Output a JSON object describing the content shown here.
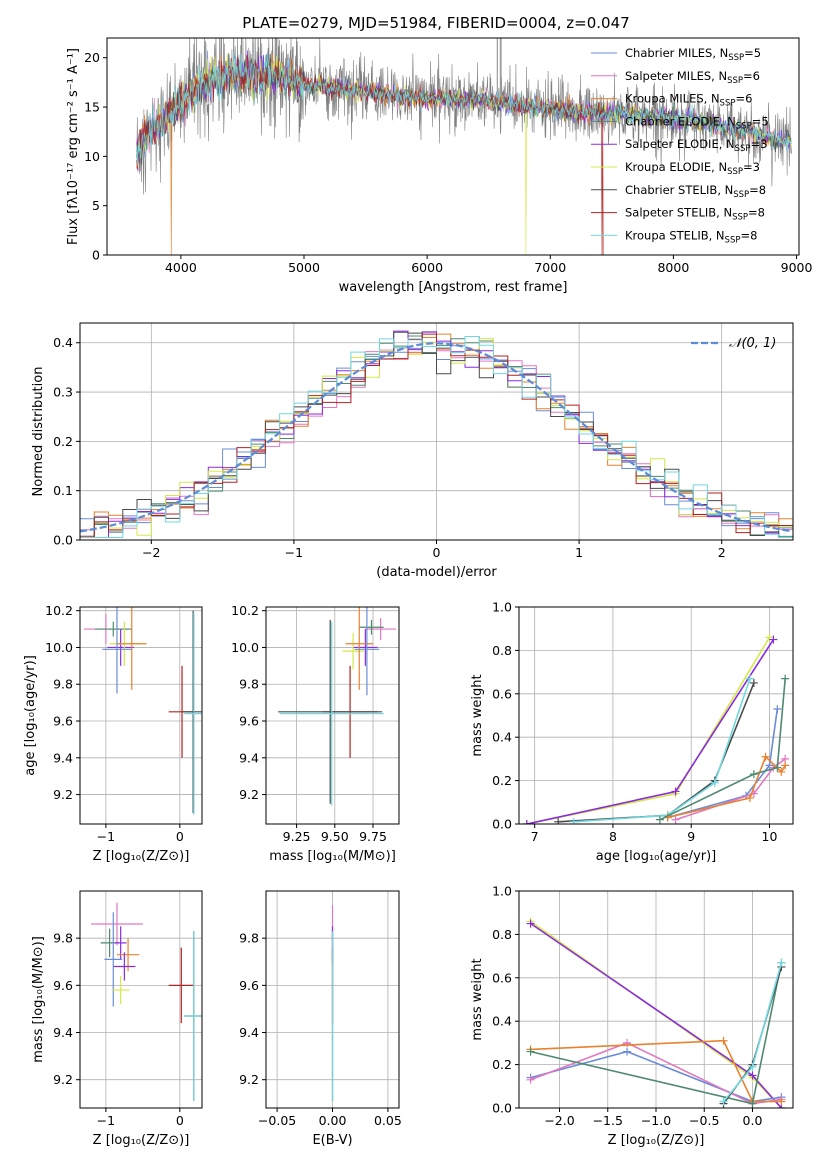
{
  "figure_title": "PLATE=0279, MJD=51984, FIBERID=0004, z=0.047",
  "colors": {
    "chabrier_miles": "#6b8bd9",
    "salpeter_miles": "#e377c2",
    "kroupa_miles": "#e8822e",
    "chabrier_elodie": "#4f8a6f",
    "salpeter_elodie": "#8a2be2",
    "kroupa_elodie": "#d4e84a",
    "chabrier_stelib": "#4a4a4a",
    "salpeter_stelib": "#b22222",
    "kroupa_stelib": "#72d8e0",
    "gaussian": "#5b8bd9"
  },
  "chart_data": [
    {
      "type": "line",
      "id": "spectrum",
      "xlabel": "wavelength [Angstrom, rest frame]",
      "ylabel": "Flux [fλ10⁻¹⁷ erg cm⁻² s⁻¹ A⁻¹]",
      "xlim": [
        3400,
        9020
      ],
      "ylim": [
        0,
        22
      ],
      "xticks": [
        4000,
        5000,
        6000,
        7000,
        8000,
        9000
      ],
      "yticks": [
        0,
        5,
        10,
        15,
        20
      ],
      "legend_position": "top-right",
      "legend": [
        {
          "main": "Chabrier MILES, N",
          "sub": "SSP",
          "tail": "=5",
          "color_key": "chabrier_miles"
        },
        {
          "main": "Salpeter MILES, N",
          "sub": "SSP",
          "tail": "=6",
          "color_key": "salpeter_miles"
        },
        {
          "main": "Kroupa MILES, N",
          "sub": "SSP",
          "tail": "=6",
          "color_key": "kroupa_miles"
        },
        {
          "main": "Chabrier ELODIE, N",
          "sub": "SSP",
          "tail": "=5",
          "color_key": "chabrier_elodie"
        },
        {
          "main": "Salpeter ELODIE, N",
          "sub": "SSP",
          "tail": "=3",
          "color_key": "salpeter_elodie"
        },
        {
          "main": "Kroupa ELODIE, N",
          "sub": "SSP",
          "tail": "=3",
          "color_key": "kroupa_elodie"
        },
        {
          "main": "Chabrier STELIB, N",
          "sub": "SSP",
          "tail": "=8",
          "color_key": "chabrier_stelib"
        },
        {
          "main": "Salpeter STELIB, N",
          "sub": "SSP",
          "tail": "=8",
          "color_key": "salpeter_stelib"
        },
        {
          "main": "Kroupa STELIB, N",
          "sub": "SSP",
          "tail": "=8",
          "color_key": "kroupa_stelib"
        }
      ],
      "continuum": [
        [
          3650,
          10.5
        ],
        [
          3700,
          12.0
        ],
        [
          3800,
          13.0
        ],
        [
          3900,
          14.0
        ],
        [
          4000,
          15.5
        ],
        [
          4200,
          17.5
        ],
        [
          4400,
          18.3
        ],
        [
          4600,
          18.2
        ],
        [
          4800,
          18.2
        ],
        [
          5000,
          17.3
        ],
        [
          5200,
          17.0
        ],
        [
          5500,
          16.5
        ],
        [
          5800,
          16.0
        ],
        [
          6100,
          15.8
        ],
        [
          6400,
          15.8
        ],
        [
          6700,
          15.2
        ],
        [
          7000,
          14.8
        ],
        [
          7300,
          14.4
        ],
        [
          7600,
          14.3
        ],
        [
          7900,
          14.0
        ],
        [
          8200,
          13.5
        ],
        [
          8500,
          12.8
        ],
        [
          8800,
          11.8
        ],
        [
          9000,
          11.5
        ]
      ],
      "data_noise_amplitude": 2.5,
      "spikes": [
        [
          6570,
          22
        ],
        [
          6595,
          22
        ],
        [
          6600,
          22
        ]
      ],
      "model_dropouts": [
        {
          "color_key": "kroupa_miles",
          "x": 3920
        },
        {
          "color_key": "kroupa_elodie",
          "x": 6800
        },
        {
          "color_key": "salpeter_stelib",
          "x": 7420
        }
      ]
    },
    {
      "type": "histogram",
      "id": "residuals",
      "xlabel": "(data-model)/error",
      "ylabel": "Normed distribution",
      "xlim": [
        -2.5,
        2.5
      ],
      "ylim": [
        0,
        0.44
      ],
      "xticks": [
        -2,
        -1,
        0,
        1,
        2
      ],
      "yticks": [
        0.0,
        0.1,
        0.2,
        0.3,
        0.4
      ],
      "grid": true,
      "bin_width": 0.1,
      "gaussian_label": "𝒩(0, 1)",
      "legend_position": "top-right"
    },
    {
      "type": "scatter",
      "id": "age_vs_Z",
      "xlabel": "Z [log₁₀(Z/Z⊙)]",
      "ylabel": "age  [log₁₀(age/yr)]",
      "xlim": [
        -1.35,
        0.3
      ],
      "ylim": [
        9.04,
        10.22
      ],
      "xticks": [
        -1,
        0
      ],
      "yticks": [
        9.2,
        9.4,
        9.6,
        9.8,
        10.0,
        10.2
      ],
      "grid": true,
      "points": [
        {
          "x": -1.0,
          "y": 10.1,
          "xerr": 0.3,
          "yerr": 0.08,
          "color_key": "salpeter_miles"
        },
        {
          "x": -0.9,
          "y": 10.1,
          "xerr": 0.25,
          "yerr": 0.04,
          "color_key": "chabrier_elodie"
        },
        {
          "x": -0.8,
          "y": 10.0,
          "xerr": 0.18,
          "yerr": 0.1,
          "color_key": "salpeter_elodie"
        },
        {
          "x": -0.75,
          "y": 10.02,
          "xerr": 0.2,
          "yerr": 0.12,
          "color_key": "kroupa_elodie"
        },
        {
          "x": -0.65,
          "y": 10.02,
          "xerr": 0.2,
          "yerr": 0.25,
          "color_key": "kroupa_miles"
        },
        {
          "x": -0.85,
          "y": 9.99,
          "xerr": 0.2,
          "yerr": 0.24,
          "color_key": "chabrier_miles"
        },
        {
          "x": 0.03,
          "y": 9.65,
          "xerr": 0.18,
          "yerr": 0.25,
          "color_key": "salpeter_stelib"
        },
        {
          "x": 0.18,
          "y": 9.65,
          "xerr": 0.14,
          "yerr": 0.55,
          "color_key": "chabrier_stelib"
        },
        {
          "x": 0.19,
          "y": 9.64,
          "xerr": 0.13,
          "yerr": 0.55,
          "color_key": "kroupa_stelib"
        }
      ]
    },
    {
      "type": "scatter",
      "id": "age_vs_mass",
      "xlabel": "mass [log₁₀(M/M⊙)]",
      "ylabel": "",
      "xlim": [
        9.05,
        9.92
      ],
      "ylim": [
        9.04,
        10.22
      ],
      "xticks": [
        9.25,
        9.5,
        9.75
      ],
      "yticks": [
        9.2,
        9.4,
        9.6,
        9.8,
        10.0,
        10.2
      ],
      "grid": true,
      "points": [
        {
          "x": 9.8,
          "y": 10.1,
          "xerr": 0.1,
          "yerr": 0.06,
          "color_key": "salpeter_miles"
        },
        {
          "x": 9.74,
          "y": 10.11,
          "xerr": 0.08,
          "yerr": 0.04,
          "color_key": "chabrier_elodie"
        },
        {
          "x": 9.7,
          "y": 10.0,
          "xerr": 0.08,
          "yerr": 0.1,
          "color_key": "salpeter_elodie"
        },
        {
          "x": 9.62,
          "y": 9.98,
          "xerr": 0.07,
          "yerr": 0.1,
          "color_key": "kroupa_elodie"
        },
        {
          "x": 9.66,
          "y": 10.02,
          "xerr": 0.09,
          "yerr": 0.25,
          "color_key": "kroupa_miles"
        },
        {
          "x": 9.71,
          "y": 9.99,
          "xerr": 0.08,
          "yerr": 0.25,
          "color_key": "chabrier_miles"
        },
        {
          "x": 9.6,
          "y": 9.65,
          "xerr": 0.18,
          "yerr": 0.25,
          "color_key": "salpeter_stelib"
        },
        {
          "x": 9.47,
          "y": 9.65,
          "xerr": 0.34,
          "yerr": 0.5,
          "color_key": "chabrier_stelib"
        },
        {
          "x": 9.48,
          "y": 9.64,
          "xerr": 0.34,
          "yerr": 0.5,
          "color_key": "kroupa_stelib"
        }
      ]
    },
    {
      "type": "line",
      "id": "massweight_vs_age",
      "xlabel": "age  [log₁₀(age/yr)]",
      "ylabel": "mass weight",
      "xlim": [
        6.8,
        10.3
      ],
      "ylim": [
        0,
        1
      ],
      "xticks": [
        7,
        8,
        9,
        10
      ],
      "yticks": [
        0.0,
        0.2,
        0.4,
        0.6,
        0.8,
        1.0
      ],
      "grid": true,
      "series": [
        {
          "color_key": "kroupa_elodie",
          "x": [
            6.9,
            8.8,
            10.0
          ],
          "y": [
            0.0,
            0.14,
            0.86
          ]
        },
        {
          "color_key": "salpeter_elodie",
          "x": [
            6.9,
            8.8,
            10.05
          ],
          "y": [
            0.0,
            0.15,
            0.85
          ]
        },
        {
          "color_key": "chabrier_stelib",
          "x": [
            7.3,
            8.7,
            9.3,
            9.8
          ],
          "y": [
            0.01,
            0.04,
            0.2,
            0.65
          ]
        },
        {
          "color_key": "kroupa_stelib",
          "x": [
            7.5,
            8.7,
            9.3,
            9.75
          ],
          "y": [
            0.01,
            0.04,
            0.19,
            0.67
          ]
        },
        {
          "color_key": "chabrier_miles",
          "x": [
            8.7,
            9.7,
            10.0,
            10.1
          ],
          "y": [
            0.03,
            0.13,
            0.27,
            0.53
          ]
        },
        {
          "color_key": "salpeter_miles",
          "x": [
            8.8,
            9.8,
            10.05,
            10.2
          ],
          "y": [
            0.02,
            0.14,
            0.26,
            0.3
          ]
        },
        {
          "color_key": "kroupa_miles",
          "x": [
            8.7,
            9.75,
            9.95,
            10.15,
            10.2
          ],
          "y": [
            0.03,
            0.12,
            0.31,
            0.24,
            0.27
          ]
        },
        {
          "color_key": "chabrier_elodie",
          "x": [
            8.6,
            9.8,
            10.1,
            10.2
          ],
          "y": [
            0.02,
            0.23,
            0.26,
            0.67
          ]
        }
      ]
    },
    {
      "type": "scatter",
      "id": "mass_vs_Z",
      "xlabel": "Z [log₁₀(Z/Z⊙)]",
      "ylabel": "mass [log₁₀(M/M⊙)]",
      "xlim": [
        -1.35,
        0.3
      ],
      "ylim": [
        9.08,
        10.0
      ],
      "xticks": [
        -1,
        0
      ],
      "yticks": [
        9.2,
        9.4,
        9.6,
        9.8
      ],
      "grid": true,
      "points": [
        {
          "x": -0.85,
          "y": 9.86,
          "xerr": 0.35,
          "yerr": 0.09,
          "color_key": "salpeter_miles"
        },
        {
          "x": -0.95,
          "y": 9.78,
          "xerr": 0.12,
          "yerr": 0.06,
          "color_key": "chabrier_elodie"
        },
        {
          "x": -0.8,
          "y": 9.78,
          "xerr": 0.08,
          "yerr": 0.07,
          "color_key": "salpeter_elodie"
        },
        {
          "x": -0.7,
          "y": 9.73,
          "xerr": 0.15,
          "yerr": 0.07,
          "color_key": "kroupa_miles"
        },
        {
          "x": -0.75,
          "y": 9.68,
          "xerr": 0.15,
          "yerr": 0.06,
          "color_key": "salpeter_elodie"
        },
        {
          "x": -0.9,
          "y": 9.71,
          "xerr": 0.12,
          "yerr": 0.2,
          "color_key": "chabrier_miles"
        },
        {
          "x": -0.8,
          "y": 9.58,
          "xerr": 0.12,
          "yerr": 0.06,
          "color_key": "kroupa_elodie"
        },
        {
          "x": 0.02,
          "y": 9.6,
          "xerr": 0.17,
          "yerr": 0.16,
          "color_key": "salpeter_stelib"
        },
        {
          "x": 0.19,
          "y": 9.47,
          "xerr": 0.13,
          "yerr": 0.36,
          "color_key": "chabrier_stelib"
        },
        {
          "x": 0.19,
          "y": 9.47,
          "xerr": 0.13,
          "yerr": 0.36,
          "color_key": "kroupa_stelib"
        }
      ]
    },
    {
      "type": "scatter",
      "id": "mass_vs_ebv",
      "xlabel": "E(B-V)",
      "ylabel": "",
      "xlim": [
        -0.06,
        0.06
      ],
      "ylim": [
        9.08,
        10.0
      ],
      "xticks": [
        -0.05,
        0.0,
        0.05
      ],
      "yticks": [
        9.2,
        9.4,
        9.6,
        9.8
      ],
      "grid": true,
      "points": [
        {
          "x": 0.0,
          "y": 9.82,
          "xerr": 0,
          "yerr": 0.12,
          "color_key": "salpeter_miles"
        },
        {
          "x": 0.0,
          "y": 9.77,
          "xerr": 0,
          "yerr": 0.08,
          "color_key": "salpeter_elodie"
        },
        {
          "x": 0.0,
          "y": 9.6,
          "xerr": 0,
          "yerr": 0.16,
          "color_key": "salpeter_stelib"
        },
        {
          "x": 0.0,
          "y": 9.47,
          "xerr": 0,
          "yerr": 0.36,
          "color_key": "chabrier_stelib"
        },
        {
          "x": 0.0,
          "y": 9.47,
          "xerr": 0,
          "yerr": 0.36,
          "color_key": "kroupa_stelib"
        }
      ]
    },
    {
      "type": "line",
      "id": "massweight_vs_Z",
      "xlabel": "Z [log₁₀(Z/Z⊙)]",
      "ylabel": "mass weight",
      "xlim": [
        -2.42,
        0.42
      ],
      "ylim": [
        0,
        1
      ],
      "xticks": [
        -2.0,
        -1.5,
        -1.0,
        -0.5,
        0.0
      ],
      "yticks": [
        0.0,
        0.2,
        0.4,
        0.6,
        0.8,
        1.0
      ],
      "grid": true,
      "series": [
        {
          "color_key": "kroupa_elodie",
          "x": [
            -2.3,
            0.0,
            0.3
          ],
          "y": [
            0.86,
            0.14,
            0.0
          ]
        },
        {
          "color_key": "salpeter_elodie",
          "x": [
            -2.3,
            0.0,
            0.3
          ],
          "y": [
            0.85,
            0.15,
            0.0
          ]
        },
        {
          "color_key": "chabrier_miles",
          "x": [
            -2.3,
            -1.3,
            0.0,
            0.3
          ],
          "y": [
            0.14,
            0.26,
            0.03,
            0.05
          ]
        },
        {
          "color_key": "salpeter_miles",
          "x": [
            -2.3,
            -1.3,
            0.0,
            0.3
          ],
          "y": [
            0.13,
            0.3,
            0.02,
            0.04
          ]
        },
        {
          "color_key": "kroupa_miles",
          "x": [
            -2.3,
            -0.3,
            0.0,
            0.3
          ],
          "y": [
            0.27,
            0.31,
            0.03,
            0.03
          ]
        },
        {
          "color_key": "chabrier_elodie",
          "x": [
            -2.3,
            0.0,
            0.3
          ],
          "y": [
            0.26,
            0.02,
            0.67
          ]
        },
        {
          "color_key": "chabrier_stelib",
          "x": [
            -0.3,
            0.0,
            0.3
          ],
          "y": [
            0.02,
            0.2,
            0.65
          ]
        },
        {
          "color_key": "kroupa_stelib",
          "x": [
            -0.3,
            0.0,
            0.3
          ],
          "y": [
            0.03,
            0.19,
            0.67
          ]
        }
      ]
    }
  ]
}
